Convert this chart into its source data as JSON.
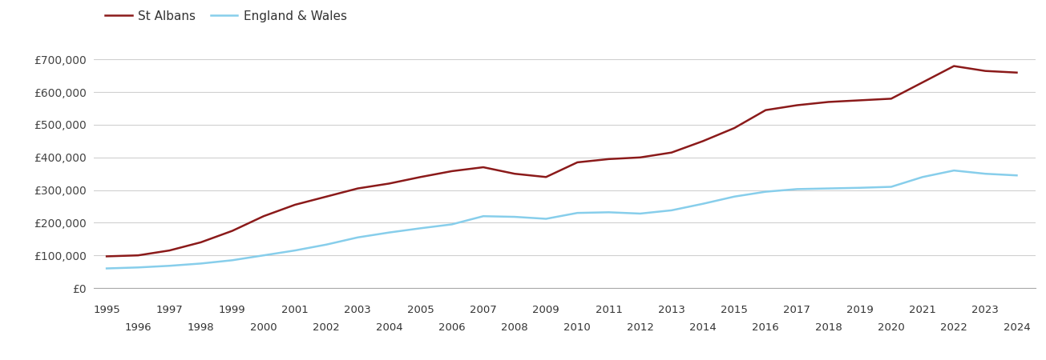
{
  "years": [
    1995,
    1996,
    1997,
    1998,
    1999,
    2000,
    2001,
    2002,
    2003,
    2004,
    2005,
    2006,
    2007,
    2008,
    2009,
    2010,
    2011,
    2012,
    2013,
    2014,
    2015,
    2016,
    2017,
    2018,
    2019,
    2020,
    2021,
    2022,
    2023,
    2024
  ],
  "st_albans": [
    97000,
    100000,
    115000,
    140000,
    175000,
    220000,
    255000,
    280000,
    305000,
    320000,
    340000,
    358000,
    370000,
    350000,
    340000,
    385000,
    395000,
    400000,
    415000,
    450000,
    490000,
    545000,
    560000,
    570000,
    575000,
    580000,
    630000,
    680000,
    665000,
    660000
  ],
  "england_wales": [
    60000,
    63000,
    68000,
    75000,
    85000,
    100000,
    115000,
    133000,
    155000,
    170000,
    183000,
    195000,
    220000,
    218000,
    212000,
    230000,
    232000,
    228000,
    238000,
    258000,
    280000,
    295000,
    303000,
    305000,
    307000,
    310000,
    340000,
    360000,
    350000,
    345000
  ],
  "st_albans_color": "#8b1a1a",
  "england_wales_color": "#87CEEB",
  "background_color": "#ffffff",
  "grid_color": "#d0d0d0",
  "ylim": [
    0,
    750000
  ],
  "yticks": [
    0,
    100000,
    200000,
    300000,
    400000,
    500000,
    600000,
    700000
  ],
  "ytick_labels": [
    "£0",
    "£100,000",
    "£200,000",
    "£300,000",
    "£400,000",
    "£500,000",
    "£600,000",
    "£700,000"
  ],
  "legend_st_albans": "St Albans",
  "legend_england_wales": "England & Wales",
  "line_width": 1.8,
  "xlim_left": 1994.6,
  "xlim_right": 2024.6
}
